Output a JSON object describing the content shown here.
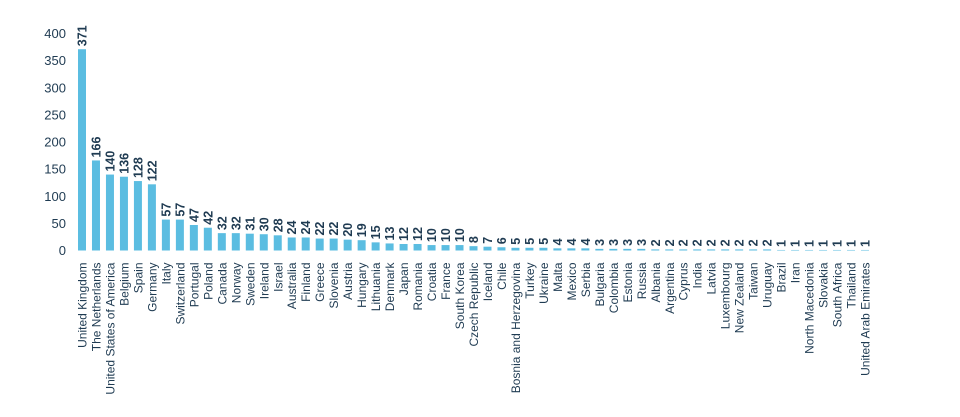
{
  "chart_data": {
    "type": "bar",
    "title": "",
    "xlabel": "",
    "ylabel": "",
    "ylim": [
      0,
      400
    ],
    "yticks": [
      0,
      50,
      100,
      150,
      200,
      250,
      300,
      350,
      400
    ],
    "grid": false,
    "bar_color": "#5bbde1",
    "text_color": "#1f3b52",
    "categories": [
      "United Kingdom",
      "The Netherlands",
      "United States of America",
      "Belgium",
      "Spain",
      "Germany",
      "Italy",
      "Switzerland",
      "Portugal",
      "Poland",
      "Canada",
      "Norway",
      "Sweden",
      "Ireland",
      "Israel",
      "Australia",
      "Finland",
      "Greece",
      "Slovenia",
      "Austria",
      "Hungary",
      "Lithuania",
      "Denmark",
      "Japan",
      "Romania",
      "Croatia",
      "France",
      "South Korea",
      "Czech Republic",
      "Iceland",
      "Chile",
      "Bosnia and Herzegovina",
      "Turkey",
      "Ukraine",
      "Malta",
      "Mexico",
      "Serbia",
      "Bulgaria",
      "Colombia",
      "Estonia",
      "Russia",
      "Albania",
      "Argentina",
      "Cyprus",
      "India",
      "Latvia",
      "Luxembourg",
      "New Zealand",
      "Taiwan",
      "Uruguay",
      "Brazil",
      "Iran",
      "North Macedonia",
      "Slovakia",
      "South Africa",
      "Thailand",
      "United Arab Emirates"
    ],
    "values": [
      371,
      166,
      140,
      136,
      128,
      122,
      57,
      57,
      47,
      42,
      32,
      32,
      31,
      30,
      28,
      24,
      24,
      22,
      22,
      20,
      19,
      15,
      13,
      12,
      12,
      10,
      10,
      10,
      8,
      7,
      6,
      5,
      5,
      5,
      4,
      4,
      4,
      3,
      3,
      3,
      3,
      2,
      2,
      2,
      2,
      2,
      2,
      2,
      2,
      2,
      1,
      1,
      1,
      1,
      1,
      1,
      1
    ]
  }
}
